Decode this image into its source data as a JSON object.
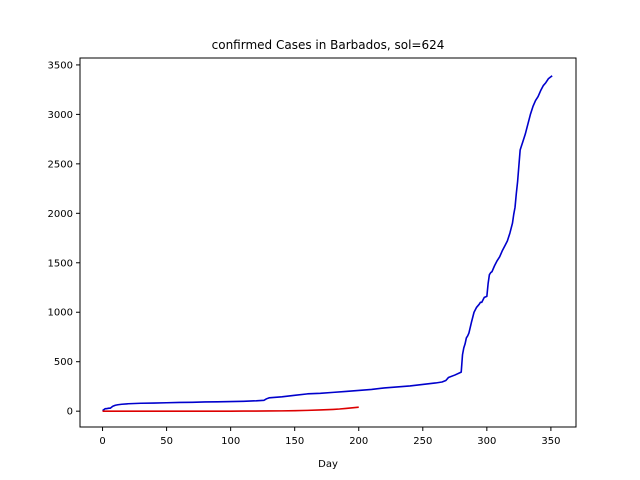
{
  "chart_data": {
    "type": "line",
    "title": "confirmed Cases in Barbados, sol=624",
    "xlabel": "Day",
    "ylabel": "",
    "xlim": [
      -17.6,
      369.6
    ],
    "ylim": [
      -160,
      3570
    ],
    "xticks": [
      0,
      50,
      100,
      150,
      200,
      250,
      300,
      350
    ],
    "yticks": [
      0,
      500,
      1000,
      1500,
      2000,
      2500,
      3000,
      3500
    ],
    "grid": false,
    "series": [
      {
        "color": "#0000cc",
        "x": [
          0,
          2,
          3,
          5,
          6,
          8,
          10,
          12,
          15,
          20,
          30,
          40,
          50,
          60,
          70,
          80,
          90,
          100,
          110,
          120,
          126,
          128,
          130,
          140,
          150,
          160,
          170,
          180,
          190,
          200,
          210,
          220,
          230,
          240,
          250,
          260,
          265,
          268,
          270,
          275,
          280,
          281,
          282,
          283,
          284,
          285,
          286,
          288,
          290,
          292,
          294,
          295,
          296,
          298,
          300,
          301,
          302,
          303,
          304,
          306,
          308,
          310,
          312,
          314,
          316,
          318,
          320,
          321,
          322,
          323,
          324,
          325,
          326,
          327,
          328,
          330,
          332,
          334,
          336,
          338,
          340,
          342,
          344,
          346,
          348,
          350,
          351
        ],
        "y": [
          5,
          25,
          25,
          30,
          30,
          50,
          60,
          65,
          70,
          75,
          80,
          82,
          85,
          88,
          90,
          93,
          95,
          97,
          100,
          105,
          110,
          125,
          135,
          145,
          160,
          175,
          180,
          190,
          200,
          210,
          220,
          235,
          245,
          255,
          270,
          285,
          295,
          310,
          340,
          365,
          395,
          570,
          640,
          680,
          740,
          760,
          790,
          900,
          1000,
          1050,
          1080,
          1100,
          1100,
          1150,
          1160,
          1290,
          1380,
          1400,
          1410,
          1470,
          1520,
          1560,
          1620,
          1670,
          1720,
          1800,
          1900,
          1990,
          2060,
          2200,
          2320,
          2480,
          2640,
          2680,
          2720,
          2800,
          2900,
          3000,
          3080,
          3140,
          3180,
          3240,
          3290,
          3320,
          3360,
          3380,
          3390
        ]
      },
      {
        "color": "#dd0000",
        "x": [
          0,
          20,
          40,
          60,
          80,
          100,
          110,
          120,
          130,
          140,
          150,
          160,
          170,
          180,
          185,
          190,
          195,
          200
        ],
        "y": [
          0,
          0,
          0,
          0,
          0,
          0,
          1,
          1,
          2,
          3,
          5,
          8,
          12,
          18,
          22,
          28,
          34,
          40
        ]
      }
    ]
  }
}
